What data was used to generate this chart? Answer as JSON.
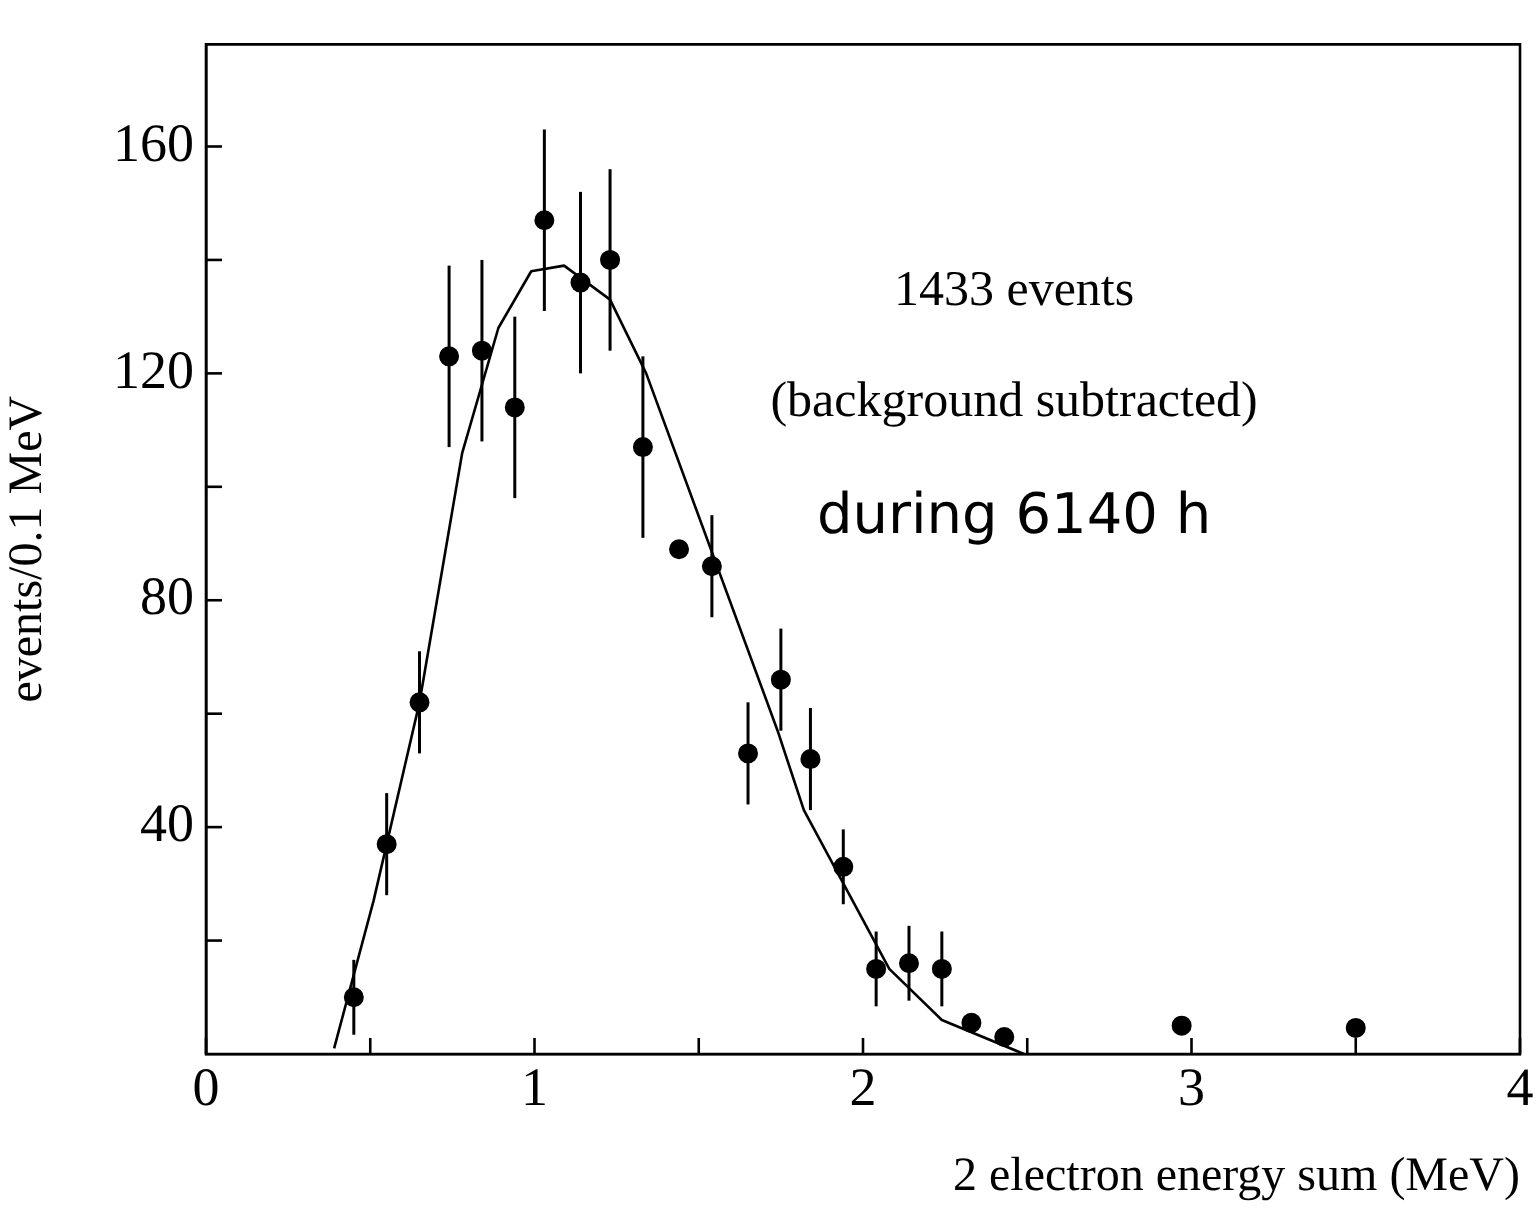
{
  "chart_data": {
    "type": "scatter",
    "xlabel": "2 electron energy sum (MeV)",
    "ylabel": "events/0.1 MeV",
    "annotations": [
      "1433 events",
      "(background subtracted)",
      "during 6140 h"
    ],
    "xlim": [
      0,
      4
    ],
    "xticks": [
      0,
      {
        "value": 0.5,
        "label": null
      },
      1,
      {
        "value": 1.5,
        "label": null
      },
      2,
      {
        "value": 2.5,
        "label": null
      },
      3,
      {
        "value": 3.5,
        "label": null
      },
      4
    ],
    "ylim": [
      0,
      178
    ],
    "yticks": [
      {
        "value": 20,
        "label": null
      },
      40,
      {
        "value": 60,
        "label": null
      },
      80,
      {
        "value": 100,
        "label": null
      },
      120,
      {
        "value": 140,
        "label": null
      },
      160
    ],
    "grid": false,
    "legend": false,
    "series": [
      {
        "type": "scatter",
        "marker": "circle",
        "color": "#000000",
        "x": [
          0.45,
          0.55,
          0.65,
          0.74,
          0.84,
          0.94,
          1.03,
          1.14,
          1.23,
          1.33,
          1.44,
          1.54,
          1.65,
          1.75,
          1.84,
          1.94,
          2.04,
          2.14,
          2.24,
          2.33,
          2.43,
          2.97,
          3.5
        ],
        "values": [
          10,
          37,
          62,
          123,
          124,
          114,
          147,
          136,
          140,
          107,
          89,
          86,
          53,
          66,
          52,
          33,
          15,
          16,
          15,
          5.5,
          3,
          5,
          4.6
        ],
        "errors": [
          6.6,
          9,
          9,
          16,
          16,
          16,
          16,
          16,
          16,
          16,
          null,
          9,
          9,
          9,
          9,
          6.6,
          6.6,
          6.6,
          6.6,
          null,
          null,
          null,
          null
        ]
      },
      {
        "type": "line",
        "marker": "none",
        "line_style": "solid",
        "color": "#000000",
        "x": [
          0.39,
          0.51,
          0.65,
          0.78,
          0.89,
          0.99,
          1.09,
          1.23,
          1.34,
          1.74,
          1.82,
          2.08,
          2.24,
          2.49
        ],
        "values": [
          1,
          27,
          62,
          106,
          128,
          138,
          139,
          133,
          120,
          57,
          43,
          15,
          6,
          0
        ]
      }
    ]
  }
}
